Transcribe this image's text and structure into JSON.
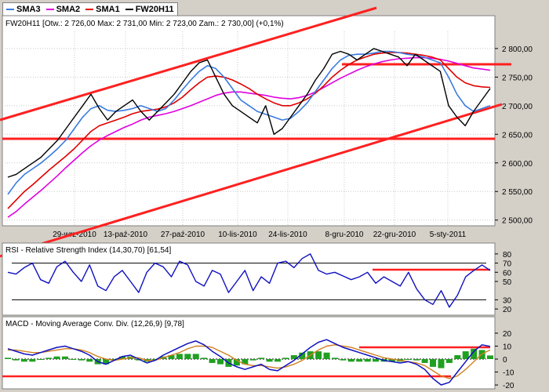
{
  "legend": [
    {
      "name": "SMA3",
      "color": "#3a7be0"
    },
    {
      "name": "SMA2",
      "color": "#e000e0"
    },
    {
      "name": "SMA1",
      "color": "#e00000"
    },
    {
      "name": "FW20H11",
      "color": "#000000"
    }
  ],
  "colors": {
    "price": "#000000",
    "sma3": "#3a7be0",
    "sma2": "#e000e0",
    "sma1": "#e00000",
    "trend": "#ff0000",
    "rsi": "#1010c0",
    "macd": "#1010c0",
    "signal": "#d08020",
    "hist": "#20a020"
  },
  "chart_data": [
    {
      "type": "line",
      "title": "FW20H11 [Otw.: 2 726,00  Max: 2 731,00  Min: 2 723,00  Zam.: 2 730,00] (+0,1%)",
      "x_labels": [
        "29-wrz-2010",
        "13-paź-2010",
        "27-paź-2010",
        "10-lis-2010",
        "24-lis-2010",
        "8-gru-2010",
        "22-gru-2010",
        "5-sty-2011"
      ],
      "y_ticks": [
        "2 500,00",
        "2 550,00",
        "2 600,00",
        "2 650,00",
        "2 700,00",
        "2 750,00",
        "2 800,00"
      ],
      "ylim": [
        2490,
        2830
      ],
      "series": [
        {
          "name": "FW20H11",
          "values": [
            2575,
            2580,
            2590,
            2600,
            2610,
            2625,
            2640,
            2660,
            2680,
            2700,
            2720,
            2695,
            2675,
            2690,
            2700,
            2710,
            2690,
            2675,
            2690,
            2705,
            2720,
            2740,
            2760,
            2775,
            2780,
            2750,
            2720,
            2700,
            2690,
            2680,
            2670,
            2700,
            2650,
            2660,
            2680,
            2700,
            2720,
            2745,
            2765,
            2790,
            2795,
            2790,
            2780,
            2790,
            2800,
            2795,
            2790,
            2785,
            2770,
            2790,
            2780,
            2770,
            2760,
            2700,
            2680,
            2665,
            2690,
            2710,
            2730
          ]
        },
        {
          "name": "SMA3",
          "values": [
            2545,
            2565,
            2580,
            2590,
            2600,
            2612,
            2625,
            2640,
            2660,
            2680,
            2695,
            2700,
            2692,
            2690,
            2692,
            2695,
            2700,
            2695,
            2690,
            2695,
            2710,
            2728,
            2745,
            2760,
            2770,
            2765,
            2750,
            2730,
            2710,
            2700,
            2690,
            2685,
            2680,
            2675,
            2678,
            2690,
            2705,
            2725,
            2745,
            2765,
            2780,
            2788,
            2790,
            2790,
            2792,
            2795,
            2795,
            2793,
            2790,
            2788,
            2785,
            2780,
            2775,
            2750,
            2720,
            2700,
            2690,
            2695,
            2700
          ]
        },
        {
          "name": "SMA2",
          "values": [
            2505,
            2515,
            2528,
            2540,
            2552,
            2565,
            2578,
            2592,
            2605,
            2618,
            2630,
            2640,
            2648,
            2655,
            2662,
            2668,
            2675,
            2680,
            2683,
            2686,
            2690,
            2695,
            2700,
            2706,
            2712,
            2718,
            2722,
            2724,
            2724,
            2722,
            2720,
            2718,
            2715,
            2713,
            2712,
            2714,
            2718,
            2724,
            2732,
            2740,
            2748,
            2755,
            2762,
            2768,
            2773,
            2777,
            2780,
            2782,
            2783,
            2784,
            2784,
            2783,
            2781,
            2778,
            2774,
            2770,
            2766,
            2764,
            2762
          ]
        },
        {
          "name": "SMA1",
          "values": [
            2520,
            2535,
            2550,
            2562,
            2575,
            2588,
            2600,
            2612,
            2625,
            2640,
            2655,
            2665,
            2670,
            2675,
            2680,
            2686,
            2690,
            2692,
            2694,
            2698,
            2705,
            2715,
            2728,
            2740,
            2750,
            2752,
            2750,
            2745,
            2738,
            2730,
            2720,
            2712,
            2705,
            2700,
            2700,
            2705,
            2712,
            2722,
            2735,
            2750,
            2762,
            2772,
            2780,
            2785,
            2790,
            2792,
            2793,
            2793,
            2792,
            2790,
            2788,
            2785,
            2780,
            2765,
            2750,
            2740,
            2735,
            2733,
            2732
          ]
        }
      ]
    },
    {
      "type": "line",
      "title": "RSI - Relative Strength Index (14,30,70) [61,54]",
      "y_ticks": [
        "20",
        "30",
        "50",
        "60",
        "70",
        "80"
      ],
      "ylim": [
        15,
        85
      ],
      "series": [
        {
          "name": "RSI",
          "values": [
            60,
            58,
            65,
            70,
            52,
            48,
            66,
            72,
            60,
            50,
            68,
            45,
            40,
            55,
            62,
            50,
            38,
            60,
            70,
            66,
            55,
            72,
            68,
            50,
            45,
            62,
            58,
            38,
            50,
            62,
            40,
            55,
            48,
            70,
            72,
            65,
            75,
            80,
            62,
            58,
            60,
            56,
            52,
            55,
            60,
            48,
            55,
            50,
            45,
            60,
            42,
            30,
            25,
            40,
            22,
            35,
            55,
            62,
            68,
            62
          ]
        }
      ]
    },
    {
      "type": "line",
      "title": "MACD - Moving Average Conv. Div. (12,26,9) [9,78]",
      "y_ticks": [
        "-20",
        "-10",
        "0",
        "10",
        "20"
      ],
      "ylim": [
        -23,
        23
      ],
      "series": [
        {
          "name": "MACD",
          "values": [
            8,
            6,
            4,
            3,
            5,
            7,
            9,
            10,
            8,
            6,
            3,
            -2,
            -4,
            -1,
            2,
            3,
            0,
            -3,
            -1,
            3,
            6,
            9,
            12,
            14,
            11,
            6,
            2,
            -3,
            -6,
            -8,
            -6,
            -4,
            -8,
            -9,
            -5,
            -1,
            4,
            9,
            13,
            15,
            12,
            9,
            7,
            5,
            3,
            1,
            -1,
            -2,
            -3,
            -2,
            -4,
            -8,
            -15,
            -20,
            -18,
            -10,
            -2,
            6,
            11,
            9.78
          ]
        },
        {
          "name": "Signal",
          "values": [
            7,
            7,
            6,
            5,
            5,
            6,
            7,
            8,
            8,
            7,
            5,
            2,
            0,
            -1,
            0,
            1,
            1,
            -1,
            -1,
            1,
            3,
            5,
            8,
            10,
            10,
            9,
            6,
            3,
            -1,
            -4,
            -5,
            -5,
            -6,
            -7,
            -6,
            -4,
            -1,
            3,
            7,
            10,
            11,
            10,
            9,
            7,
            5,
            3,
            1,
            0,
            -1,
            -2,
            -3,
            -5,
            -9,
            -13,
            -15,
            -13,
            -8,
            -2,
            4,
            7
          ]
        }
      ]
    }
  ]
}
